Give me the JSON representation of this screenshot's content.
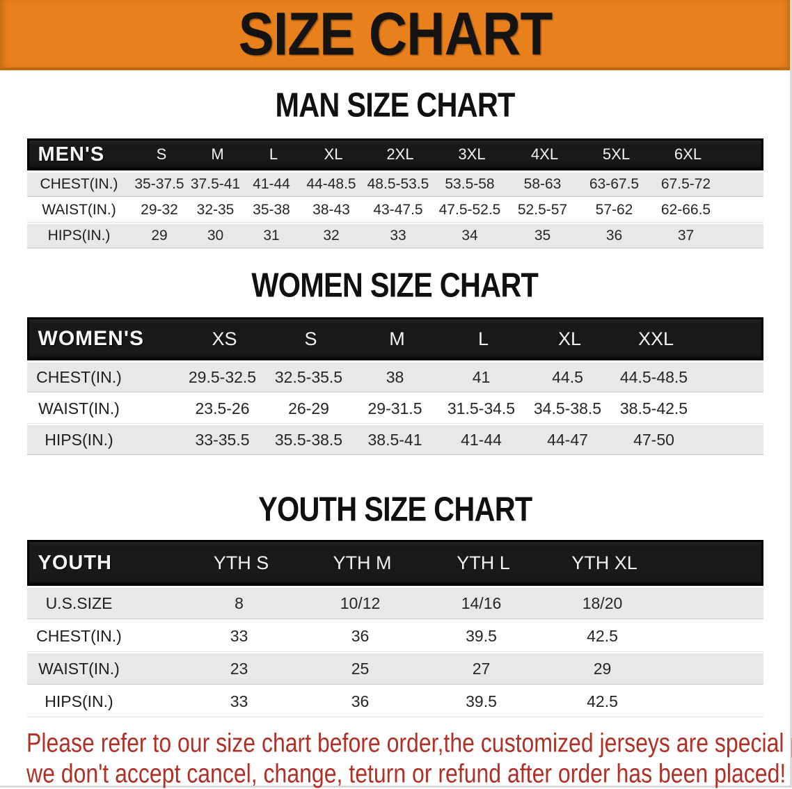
{
  "theme": {
    "banner_bg": "#E8811B",
    "footer_text_color": "#B03026",
    "header_bar_bg": "#191919"
  },
  "banner": {
    "title": "SIZE CHART"
  },
  "sections": {
    "men": {
      "heading": "MAN SIZE CHART",
      "table": {
        "header_label": "MEN'S",
        "columns": [
          "S",
          "M",
          "L",
          "XL",
          "2XL",
          "3XL",
          "4XL",
          "5XL",
          "6XL"
        ],
        "rows": [
          {
            "label": "CHEST(IN.)",
            "values": [
              "35-37.5",
              "37.5-41",
              "41-44",
              "44-48.5",
              "48.5-53.5",
              "53.5-58",
              "58-63",
              "63-67.5",
              "67.5-72"
            ]
          },
          {
            "label": "WAIST(IN.)",
            "values": [
              "29-32",
              "32-35",
              "35-38",
              "38-43",
              "43-47.5",
              "47.5-52.5",
              "52.5-57",
              "57-62",
              "62-66.5"
            ]
          },
          {
            "label": "HIPS(IN.)",
            "values": [
              "29",
              "30",
              "31",
              "32",
              "33",
              "34",
              "35",
              "36",
              "37"
            ]
          }
        ]
      }
    },
    "women": {
      "heading": "WOMEN SIZE CHART",
      "table": {
        "header_label": "WOMEN'S",
        "columns": [
          "XS",
          "S",
          "M",
          "L",
          "XL",
          "XXL"
        ],
        "rows": [
          {
            "label": "CHEST(IN.)",
            "values": [
              "29.5-32.5",
              "32.5-35.5",
              "38",
              "41",
              "44.5",
              "44.5-48.5"
            ]
          },
          {
            "label": "WAIST(IN.)",
            "values": [
              "23.5-26",
              "26-29",
              "29-31.5",
              "31.5-34.5",
              "34.5-38.5",
              "38.5-42.5"
            ]
          },
          {
            "label": "HIPS(IN.)",
            "values": [
              "33-35.5",
              "35.5-38.5",
              "38.5-41",
              "41-44",
              "44-47",
              "47-50"
            ]
          }
        ]
      }
    },
    "youth": {
      "heading": "YOUTH SIZE CHART",
      "table": {
        "header_label": "YOUTH",
        "columns": [
          "YTH S",
          "YTH M",
          "YTH L",
          "YTH XL"
        ],
        "rows": [
          {
            "label": "U.S.SIZE",
            "values": [
              "8",
              "10/12",
              "14/16",
              "18/20"
            ]
          },
          {
            "label": "CHEST(IN.)",
            "values": [
              "33",
              "36",
              "39.5",
              "42.5"
            ]
          },
          {
            "label": "WAIST(IN.)",
            "values": [
              "23",
              "25",
              "27",
              "29"
            ]
          },
          {
            "label": "HIPS(IN.)",
            "values": [
              "33",
              "36",
              "39.5",
              "42.5"
            ]
          }
        ]
      }
    }
  },
  "footer": {
    "line1": "Please refer to our size chart before order,the customized jerseys are special products,",
    "line2": "we don't accept cancel, change, teturn or refund after order has been placed!"
  }
}
